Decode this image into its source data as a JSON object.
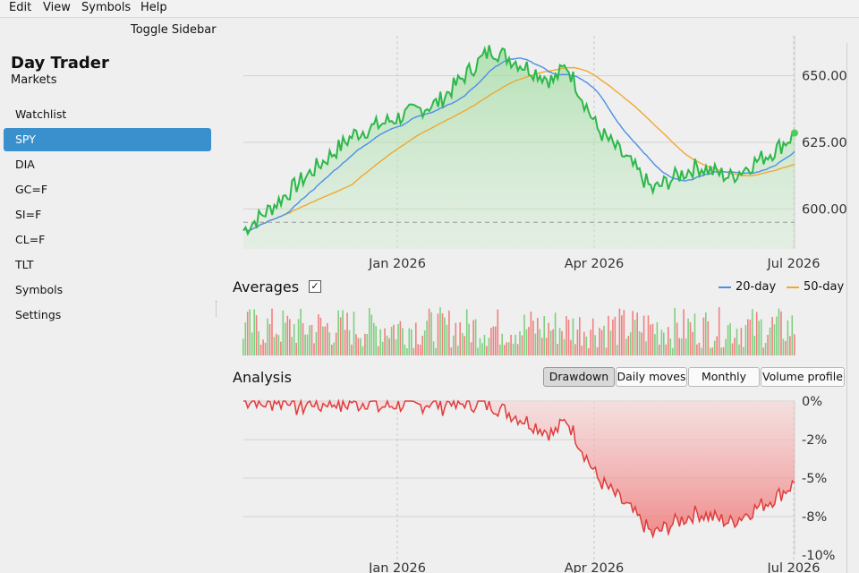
{
  "menu": [
    "Edit",
    "View",
    "Symbols",
    "Help"
  ],
  "toolbar": {
    "toggle_sidebar": "Toggle Sidebar"
  },
  "app": {
    "title": "Day Trader",
    "subtitle": "Markets"
  },
  "sidebar": {
    "items": [
      {
        "label": "Watchlist",
        "active": false
      },
      {
        "label": "SPY",
        "active": true
      },
      {
        "label": "DIA",
        "active": false
      },
      {
        "label": "GC=F",
        "active": false
      },
      {
        "label": "SI=F",
        "active": false
      },
      {
        "label": "CL=F",
        "active": false
      },
      {
        "label": "TLT",
        "active": false
      },
      {
        "label": "Symbols",
        "active": false
      },
      {
        "label": "Settings",
        "active": false
      }
    ]
  },
  "averages": {
    "label": "Averages",
    "checked": true,
    "check_glyph": "✓"
  },
  "legend": [
    {
      "name": "20-day",
      "color": "#4c8ee8"
    },
    {
      "name": "50-day",
      "color": "#f0a830"
    }
  ],
  "analysis": {
    "label": "Analysis",
    "tabs": [
      "Drawdown",
      "Daily moves",
      "Monthly",
      "Volume profile"
    ],
    "active_tab": "Drawdown"
  },
  "chart_data": [
    {
      "type": "line",
      "title": "",
      "x_ticks": [
        "Jan 2026",
        "Apr 2026",
        "Jul 2026"
      ],
      "y_ticks": [
        "650.00",
        "625.00",
        "600.00"
      ],
      "ylim": [
        585,
        665
      ],
      "grid": true,
      "series": [
        {
          "name": "SPY",
          "color": "#2db84a"
        },
        {
          "name": "20-day",
          "color": "#4c8ee8"
        },
        {
          "name": "50-day",
          "color": "#f0a830"
        }
      ],
      "reference_line": 595,
      "last_value": 628.5
    },
    {
      "type": "bar",
      "title": "",
      "up_color": "#7fcf7f",
      "down_color": "#f08080"
    },
    {
      "type": "area",
      "title": "",
      "x_ticks": [
        "Jan 2026",
        "Apr 2026",
        "Jul 2026"
      ],
      "y_ticks": [
        "0%",
        "-2%",
        "-5%",
        "-8%",
        "-10%"
      ],
      "ylim": [
        -10,
        0
      ],
      "grid": true,
      "min_value": -8.8,
      "last_value": -5.3
    }
  ]
}
